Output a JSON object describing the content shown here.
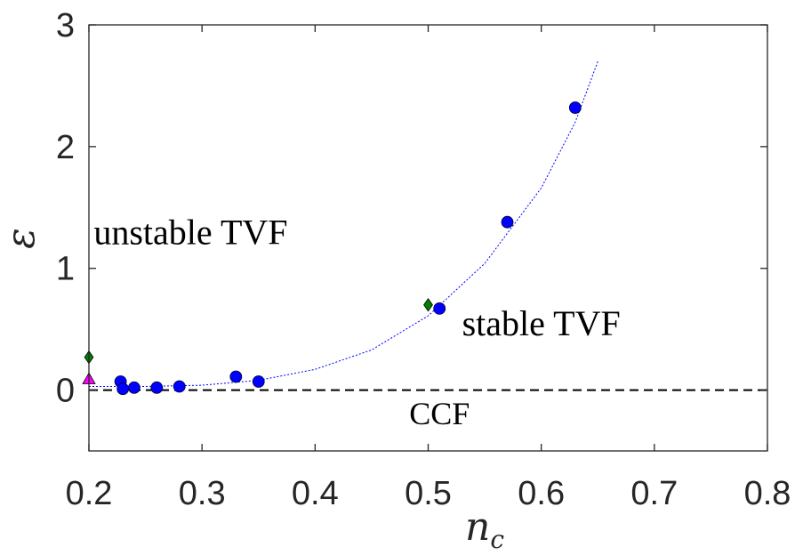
{
  "chart_data": {
    "type": "scatter",
    "xlabel": "n",
    "xlabel_subscript": "c",
    "ylabel": "ε",
    "xlim": [
      0.2,
      0.8
    ],
    "ylim": [
      -0.5,
      3
    ],
    "xticks": [
      0.2,
      0.3,
      0.4,
      0.5,
      0.6,
      0.7,
      0.8
    ],
    "xtick_labels": [
      "0.2",
      "0.3",
      "0.4",
      "0.5",
      "0.6",
      "0.7",
      "0.8"
    ],
    "yticks": [
      0,
      1,
      2,
      3
    ],
    "ytick_labels": [
      "0",
      "1",
      "2",
      "3"
    ],
    "grid": false,
    "series": [
      {
        "marker": "circle",
        "color": "#0000ff",
        "points": [
          {
            "x": 0.228,
            "y": 0.07
          },
          {
            "x": 0.23,
            "y": 0.01
          },
          {
            "x": 0.24,
            "y": 0.02
          },
          {
            "x": 0.26,
            "y": 0.02
          },
          {
            "x": 0.28,
            "y": 0.03
          },
          {
            "x": 0.33,
            "y": 0.11
          },
          {
            "x": 0.35,
            "y": 0.07
          },
          {
            "x": 0.51,
            "y": 0.67
          },
          {
            "x": 0.57,
            "y": 1.38
          },
          {
            "x": 0.63,
            "y": 2.32
          }
        ]
      },
      {
        "marker": "diamond",
        "color": "#008000",
        "points": [
          {
            "x": 0.2,
            "y": 0.27
          },
          {
            "x": 0.5,
            "y": 0.7
          }
        ]
      },
      {
        "marker": "triangle",
        "color": "#ff00ff",
        "points": [
          {
            "x": 0.2,
            "y": 0.09
          }
        ]
      }
    ],
    "fit_curve": {
      "style": "dotted",
      "color": "#0000ff",
      "x_range": [
        0.2,
        0.65
      ],
      "points": [
        {
          "x": 0.2,
          "y": 0.03
        },
        {
          "x": 0.25,
          "y": 0.03
        },
        {
          "x": 0.3,
          "y": 0.04
        },
        {
          "x": 0.35,
          "y": 0.08
        },
        {
          "x": 0.4,
          "y": 0.17
        },
        {
          "x": 0.45,
          "y": 0.33
        },
        {
          "x": 0.5,
          "y": 0.61
        },
        {
          "x": 0.55,
          "y": 1.04
        },
        {
          "x": 0.6,
          "y": 1.66
        },
        {
          "x": 0.63,
          "y": 2.2
        },
        {
          "x": 0.65,
          "y": 2.7
        }
      ]
    },
    "reference_line": {
      "y": 0,
      "style": "dashed",
      "color": "#000000"
    },
    "annotations": [
      {
        "text": "unstable  TVF",
        "x": 0.29,
        "y": 1.2
      },
      {
        "text": "stable TVF",
        "x": 0.6,
        "y": 0.45
      },
      {
        "text": "CCF",
        "x": 0.51,
        "y": -0.28
      }
    ]
  }
}
